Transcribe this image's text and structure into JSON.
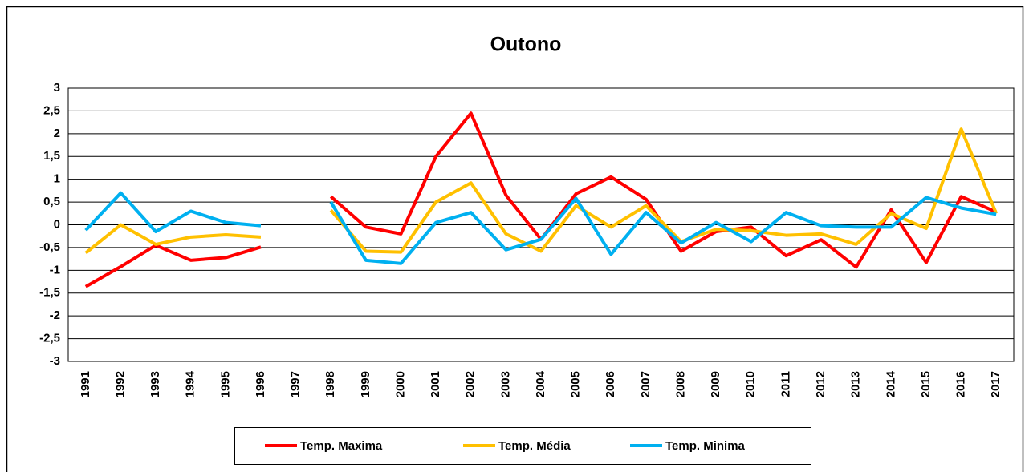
{
  "chart_data": {
    "type": "line",
    "title": "Outono",
    "categories": [
      "1991",
      "1992",
      "1993",
      "1994",
      "1995",
      "1996",
      "1997",
      "1998",
      "1999",
      "2000",
      "2001",
      "2002",
      "2003",
      "2004",
      "2005",
      "2006",
      "2007",
      "2008",
      "2009",
      "2010",
      "2011",
      "2012",
      "2013",
      "2014",
      "2015",
      "2016",
      "2017"
    ],
    "series": [
      {
        "name": "Temp. Maxima",
        "color": "#ff0000",
        "values": [
          -1.36,
          -0.92,
          -0.45,
          -0.78,
          -0.72,
          -0.49,
          null,
          0.62,
          -0.05,
          -0.2,
          1.5,
          2.45,
          0.65,
          -0.32,
          0.68,
          1.05,
          0.56,
          -0.58,
          -0.15,
          -0.05,
          -0.68,
          -0.33,
          -0.93,
          0.33,
          -0.83,
          0.62,
          0.28
        ]
      },
      {
        "name": "Temp. Média",
        "color": "#ffc000",
        "values": [
          -0.62,
          0,
          -0.43,
          -0.27,
          -0.22,
          -0.27,
          null,
          0.32,
          -0.58,
          -0.6,
          0.5,
          0.92,
          -0.2,
          -0.58,
          0.42,
          -0.05,
          0.42,
          -0.37,
          -0.1,
          -0.13,
          -0.23,
          -0.2,
          -0.43,
          0.25,
          -0.08,
          2.1,
          0.25
        ]
      },
      {
        "name": "Temp. Minima",
        "color": "#00b0f0",
        "values": [
          -0.12,
          0.7,
          -0.15,
          0.3,
          0.05,
          -0.02,
          null,
          0.5,
          -0.78,
          -0.85,
          0.05,
          0.27,
          -0.55,
          -0.32,
          0.58,
          -0.65,
          0.27,
          -0.4,
          0.05,
          -0.37,
          0.27,
          -0.02,
          -0.05,
          -0.05,
          0.6,
          0.37,
          0.23
        ]
      }
    ],
    "ylim": [
      -3,
      3
    ],
    "yticks": [
      3,
      {
        "value": 2.5,
        "label": "2,5"
      },
      2,
      {
        "value": 1.5,
        "label": "1,5"
      },
      1,
      {
        "value": 0.5,
        "label": "0,5"
      },
      0,
      {
        "value": -0.5,
        "label": "-0,5"
      },
      -1,
      {
        "value": -1.5,
        "label": "-1,5"
      },
      -2,
      {
        "value": -2.5,
        "label": "-2,5"
      },
      -3
    ],
    "grid": true
  }
}
